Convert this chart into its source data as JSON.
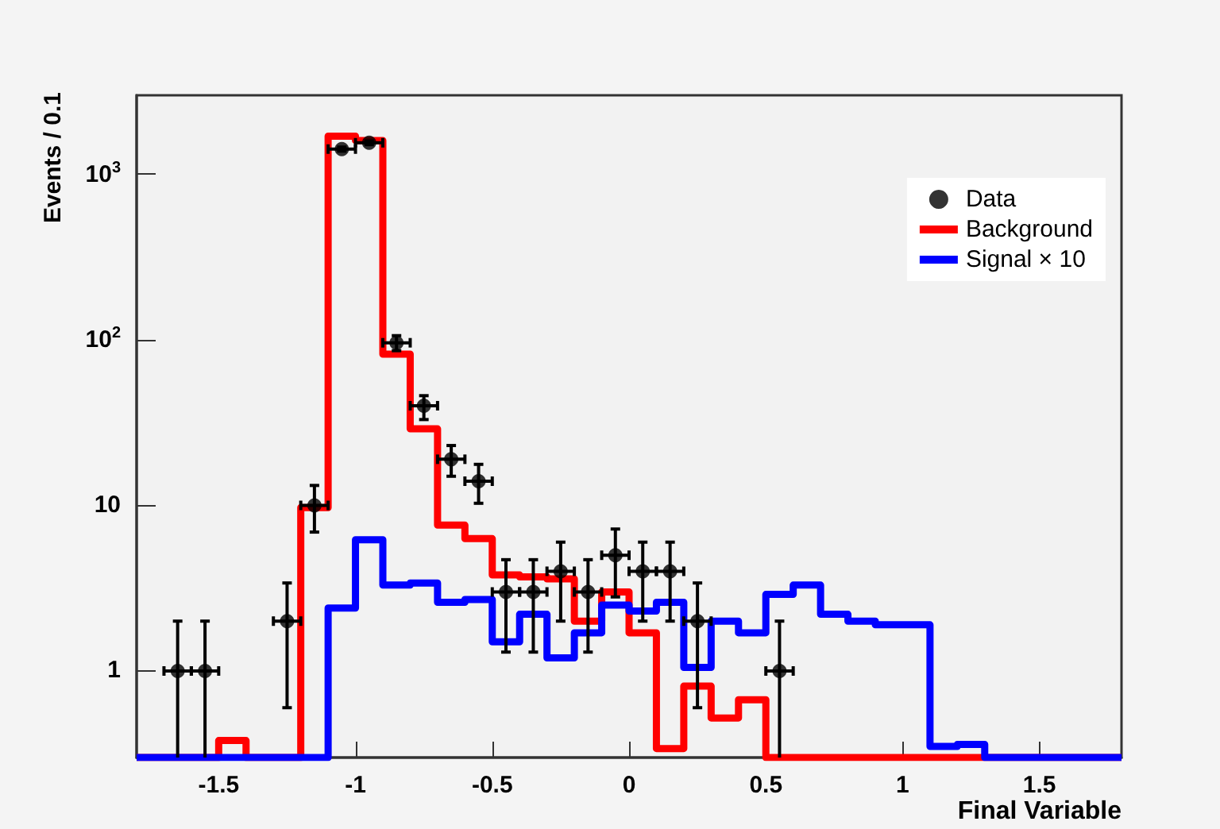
{
  "chart_data": {
    "type": "histogram",
    "xlabel": "Final Variable",
    "ylabel": "Events / 0.1",
    "bins": [
      -1.8,
      -1.7,
      -1.6,
      -1.5,
      -1.4,
      -1.3,
      -1.2,
      -1.1,
      -1.0,
      -0.9,
      -0.8,
      -0.7,
      -0.6,
      -0.5,
      -0.4,
      -0.3,
      -0.2,
      -0.1,
      0.0,
      0.1,
      0.2,
      0.3,
      0.4,
      0.5,
      0.6,
      0.7,
      0.8,
      0.9,
      1.0,
      1.1,
      1.2,
      1.3,
      1.4,
      1.5,
      1.6,
      1.7,
      1.8
    ],
    "series": [
      {
        "name": "Data",
        "type": "scatter",
        "color": "#000000",
        "marker": "circle",
        "x": [
          -1.65,
          -1.55,
          -1.25,
          -1.15,
          -1.05,
          -0.95,
          -0.85,
          -0.75,
          -0.65,
          -0.55,
          -0.45,
          -0.35,
          -0.25,
          -0.15,
          -0.05,
          0.05,
          0.15,
          0.25,
          0.55
        ],
        "values": [
          1,
          1,
          2,
          10,
          1420,
          1550,
          96,
          40,
          19,
          14,
          3,
          3,
          4,
          3,
          5,
          4,
          4,
          2,
          1
        ],
        "errors": [
          [
            0.3,
            2
          ],
          [
            0.3,
            2
          ],
          [
            0.6,
            3.4
          ],
          [
            6.9,
            13.2
          ],
          [
            1380,
            1460
          ],
          [
            1510,
            1590
          ],
          [
            86,
            106
          ],
          [
            33,
            46
          ],
          [
            15,
            23
          ],
          [
            10.3,
            17.7
          ],
          [
            1.3,
            4.7
          ],
          [
            1.3,
            4.7
          ],
          [
            2.0,
            6.0
          ],
          [
            1.3,
            4.7
          ],
          [
            2.8,
            7.2
          ],
          [
            2.0,
            6.0
          ],
          [
            2.0,
            6.0
          ],
          [
            0.6,
            3.4
          ],
          [
            0.3,
            2
          ]
        ],
        "xerrors": [
          0.05,
          0.05,
          0.05,
          0.05,
          0.05,
          0.05,
          0.05,
          0.05,
          0.05,
          0.05,
          0.05,
          0.05,
          0.05,
          0.05,
          0.05,
          0.05,
          0.05,
          0.05,
          0.05
        ]
      },
      {
        "name": "Background",
        "color": "#ff0000",
        "values": [
          null,
          null,
          null,
          0.38,
          null,
          null,
          9.7,
          1700,
          1600,
          82,
          29,
          7.6,
          6.3,
          3.8,
          3.7,
          3.6,
          2.0,
          3.0,
          1.7,
          0.34,
          0.81,
          0.52,
          0.67,
          null,
          null,
          null,
          null,
          null,
          null,
          null,
          null,
          null,
          null,
          null,
          null,
          null
        ]
      },
      {
        "name": "Signal × 10",
        "color": "#0000ff",
        "values": [
          null,
          null,
          null,
          null,
          null,
          null,
          null,
          2.4,
          6.2,
          3.3,
          3.4,
          2.6,
          2.7,
          1.5,
          2.2,
          1.2,
          1.7,
          2.5,
          2.3,
          2.6,
          1.05,
          2.0,
          1.7,
          2.9,
          3.3,
          2.2,
          2.0,
          1.9,
          1.9,
          0.35,
          0.36,
          null,
          null,
          null,
          null,
          null
        ]
      }
    ],
    "xlim": [
      -1.8,
      1.8
    ],
    "xticks": [
      -1.5,
      -1,
      -0.5,
      0,
      0.5,
      1,
      1.5
    ],
    "ylim": [
      0.3,
      3000
    ],
    "yticks": [
      1,
      10,
      {
        "value": 100,
        "label": "10$^{2}$"
      },
      {
        "value": 1000,
        "label": "10$^{3}$"
      }
    ],
    "log": "y",
    "grid": false,
    "legend": "top right",
    "line_style": "solid"
  }
}
